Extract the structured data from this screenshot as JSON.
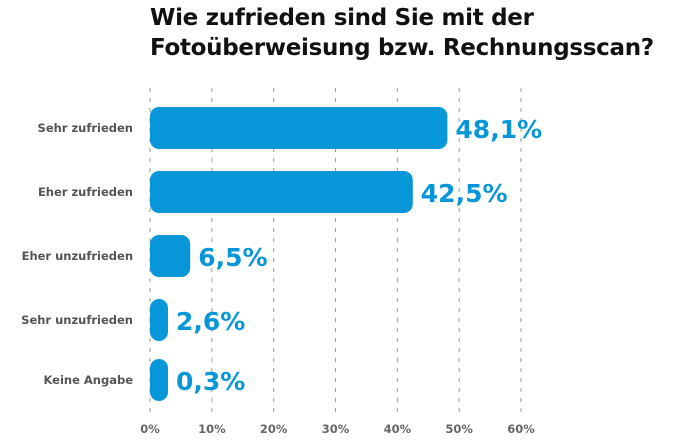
{
  "chart_data": {
    "type": "bar",
    "orientation": "horizontal",
    "title": "Wie zufrieden sind Sie mit der Fotoüberweisung bzw. Rechnungsscan?",
    "title_lines": [
      "Wie zufrieden sind Sie mit der",
      "Fotoüberweisung bzw. Rechnungsscan?"
    ],
    "categories": [
      "Sehr zufrieden",
      "Eher zufrieden",
      "Eher unzufrieden",
      "Sehr unzufrieden",
      "Keine Angabe"
    ],
    "values": [
      48.1,
      42.5,
      6.5,
      2.6,
      0.3
    ],
    "value_labels": [
      "48,1%",
      "42,5%",
      "6,5%",
      "2,6%",
      "0,3%"
    ],
    "xlabel": "",
    "ylabel": "",
    "xlim": [
      0,
      60
    ],
    "x_ticks": [
      0,
      10,
      20,
      30,
      40,
      50,
      60
    ],
    "x_tick_labels": [
      "0%",
      "10%",
      "20%",
      "30%",
      "40%",
      "50%",
      "60%"
    ],
    "grid": "vertical dashed",
    "legend": "none",
    "colors": {
      "bar": "#0797d9",
      "value_label": "#0797d9",
      "grid": "#9a9a9a"
    }
  }
}
